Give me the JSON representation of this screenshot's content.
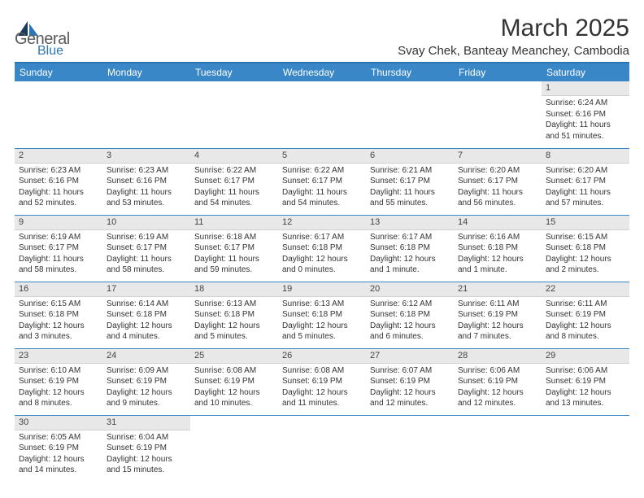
{
  "logo": {
    "main": "General",
    "sub": "Blue"
  },
  "title": "March 2025",
  "location": "Svay Chek, Banteay Meanchey, Cambodia",
  "colors": {
    "header_bg": "#3a87c8",
    "divider": "#2e75b6",
    "daynum_bg": "#e8e8e8",
    "text": "#333333"
  },
  "weekdays": [
    "Sunday",
    "Monday",
    "Tuesday",
    "Wednesday",
    "Thursday",
    "Friday",
    "Saturday"
  ],
  "weeks": [
    [
      null,
      null,
      null,
      null,
      null,
      null,
      {
        "n": "1",
        "sunrise": "6:24 AM",
        "sunset": "6:16 PM",
        "daylight": "11 hours and 51 minutes."
      }
    ],
    [
      {
        "n": "2",
        "sunrise": "6:23 AM",
        "sunset": "6:16 PM",
        "daylight": "11 hours and 52 minutes."
      },
      {
        "n": "3",
        "sunrise": "6:23 AM",
        "sunset": "6:16 PM",
        "daylight": "11 hours and 53 minutes."
      },
      {
        "n": "4",
        "sunrise": "6:22 AM",
        "sunset": "6:17 PM",
        "daylight": "11 hours and 54 minutes."
      },
      {
        "n": "5",
        "sunrise": "6:22 AM",
        "sunset": "6:17 PM",
        "daylight": "11 hours and 54 minutes."
      },
      {
        "n": "6",
        "sunrise": "6:21 AM",
        "sunset": "6:17 PM",
        "daylight": "11 hours and 55 minutes."
      },
      {
        "n": "7",
        "sunrise": "6:20 AM",
        "sunset": "6:17 PM",
        "daylight": "11 hours and 56 minutes."
      },
      {
        "n": "8",
        "sunrise": "6:20 AM",
        "sunset": "6:17 PM",
        "daylight": "11 hours and 57 minutes."
      }
    ],
    [
      {
        "n": "9",
        "sunrise": "6:19 AM",
        "sunset": "6:17 PM",
        "daylight": "11 hours and 58 minutes."
      },
      {
        "n": "10",
        "sunrise": "6:19 AM",
        "sunset": "6:17 PM",
        "daylight": "11 hours and 58 minutes."
      },
      {
        "n": "11",
        "sunrise": "6:18 AM",
        "sunset": "6:17 PM",
        "daylight": "11 hours and 59 minutes."
      },
      {
        "n": "12",
        "sunrise": "6:17 AM",
        "sunset": "6:18 PM",
        "daylight": "12 hours and 0 minutes."
      },
      {
        "n": "13",
        "sunrise": "6:17 AM",
        "sunset": "6:18 PM",
        "daylight": "12 hours and 1 minute."
      },
      {
        "n": "14",
        "sunrise": "6:16 AM",
        "sunset": "6:18 PM",
        "daylight": "12 hours and 1 minute."
      },
      {
        "n": "15",
        "sunrise": "6:15 AM",
        "sunset": "6:18 PM",
        "daylight": "12 hours and 2 minutes."
      }
    ],
    [
      {
        "n": "16",
        "sunrise": "6:15 AM",
        "sunset": "6:18 PM",
        "daylight": "12 hours and 3 minutes."
      },
      {
        "n": "17",
        "sunrise": "6:14 AM",
        "sunset": "6:18 PM",
        "daylight": "12 hours and 4 minutes."
      },
      {
        "n": "18",
        "sunrise": "6:13 AM",
        "sunset": "6:18 PM",
        "daylight": "12 hours and 5 minutes."
      },
      {
        "n": "19",
        "sunrise": "6:13 AM",
        "sunset": "6:18 PM",
        "daylight": "12 hours and 5 minutes."
      },
      {
        "n": "20",
        "sunrise": "6:12 AM",
        "sunset": "6:18 PM",
        "daylight": "12 hours and 6 minutes."
      },
      {
        "n": "21",
        "sunrise": "6:11 AM",
        "sunset": "6:19 PM",
        "daylight": "12 hours and 7 minutes."
      },
      {
        "n": "22",
        "sunrise": "6:11 AM",
        "sunset": "6:19 PM",
        "daylight": "12 hours and 8 minutes."
      }
    ],
    [
      {
        "n": "23",
        "sunrise": "6:10 AM",
        "sunset": "6:19 PM",
        "daylight": "12 hours and 8 minutes."
      },
      {
        "n": "24",
        "sunrise": "6:09 AM",
        "sunset": "6:19 PM",
        "daylight": "12 hours and 9 minutes."
      },
      {
        "n": "25",
        "sunrise": "6:08 AM",
        "sunset": "6:19 PM",
        "daylight": "12 hours and 10 minutes."
      },
      {
        "n": "26",
        "sunrise": "6:08 AM",
        "sunset": "6:19 PM",
        "daylight": "12 hours and 11 minutes."
      },
      {
        "n": "27",
        "sunrise": "6:07 AM",
        "sunset": "6:19 PM",
        "daylight": "12 hours and 12 minutes."
      },
      {
        "n": "28",
        "sunrise": "6:06 AM",
        "sunset": "6:19 PM",
        "daylight": "12 hours and 12 minutes."
      },
      {
        "n": "29",
        "sunrise": "6:06 AM",
        "sunset": "6:19 PM",
        "daylight": "12 hours and 13 minutes."
      }
    ],
    [
      {
        "n": "30",
        "sunrise": "6:05 AM",
        "sunset": "6:19 PM",
        "daylight": "12 hours and 14 minutes."
      },
      {
        "n": "31",
        "sunrise": "6:04 AM",
        "sunset": "6:19 PM",
        "daylight": "12 hours and 15 minutes."
      },
      null,
      null,
      null,
      null,
      null
    ]
  ],
  "labels": {
    "sunrise": "Sunrise: ",
    "sunset": "Sunset: ",
    "daylight": "Daylight: "
  }
}
